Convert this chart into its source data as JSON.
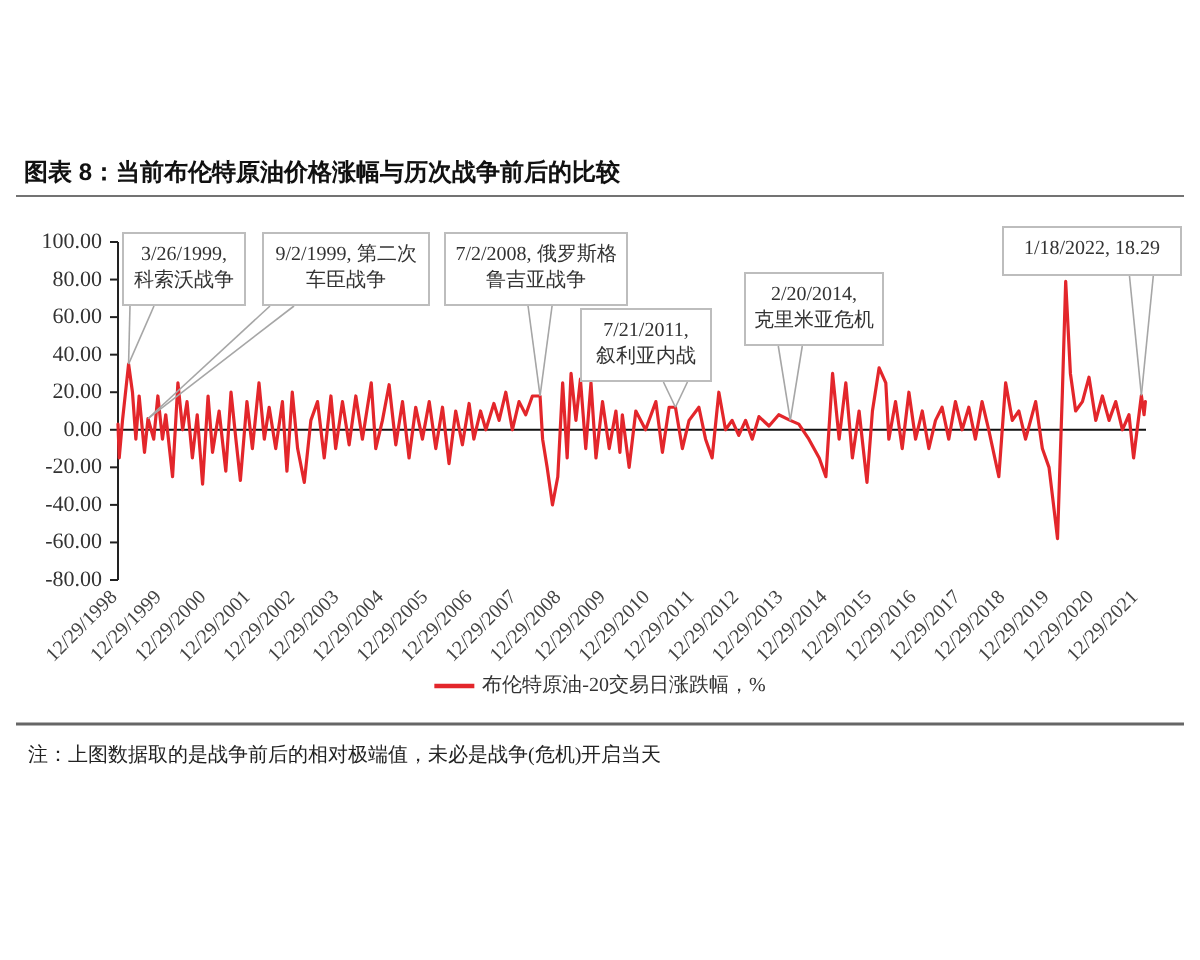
{
  "chart_data": {
    "type": "line",
    "title": "图表 8：当前布伦特原油价格涨幅与历次战争前后的比较",
    "x": [
      "1998-12-29",
      "1999-01-08",
      "1999-02-04",
      "1999-03-26",
      "1999-04-27",
      "1999-05-25",
      "1999-06-21",
      "1999-08-04",
      "1999-09-02",
      "1999-10-19",
      "1999-11-22",
      "1999-12-30",
      "2000-01-26",
      "2000-03-22",
      "2000-05-05",
      "2000-06-13",
      "2000-07-19",
      "2000-09-01",
      "2000-10-11",
      "2000-11-24",
      "2001-01-08",
      "2001-02-14",
      "2001-04-09",
      "2001-06-03",
      "2001-07-16",
      "2001-08-25",
      "2001-10-01",
      "2001-11-24",
      "2002-01-08",
      "2002-03-03",
      "2002-04-16",
      "2002-05-26",
      "2002-07-19",
      "2002-09-12",
      "2002-10-19",
      "2002-12-02",
      "2003-01-15",
      "2003-03-11",
      "2003-05-04",
      "2003-06-28",
      "2003-08-22",
      "2003-10-16",
      "2003-11-24",
      "2004-01-19",
      "2004-03-14",
      "2004-05-08",
      "2004-07-01",
      "2004-09-12",
      "2004-10-19",
      "2004-12-13",
      "2005-02-06",
      "2005-04-02",
      "2005-05-27",
      "2005-07-20",
      "2005-09-13",
      "2005-11-07",
      "2006-01-02",
      "2006-02-25",
      "2006-04-21",
      "2006-06-14",
      "2006-08-08",
      "2006-10-02",
      "2006-11-26",
      "2007-01-04",
      "2007-02-28",
      "2007-04-13",
      "2007-06-18",
      "2007-07-31",
      "2007-09-24",
      "2007-11-17",
      "2008-01-11",
      "2008-03-06",
      "2008-04-30",
      "2008-07-02",
      "2008-07-23",
      "2008-08-29",
      "2008-10-12",
      "2008-11-25",
      "2009-01-04",
      "2009-02-10",
      "2009-03-14",
      "2009-04-23",
      "2009-05-30",
      "2009-07-13",
      "2009-08-25",
      "2009-10-05",
      "2009-11-28",
      "2010-01-22",
      "2010-03-18",
      "2010-04-20",
      "2010-05-10",
      "2010-07-05",
      "2010-08-29",
      "2010-11-17",
      "2011-02-10",
      "2011-04-05",
      "2011-05-30",
      "2011-07-21",
      "2011-09-16",
      "2011-11-10",
      "2012-01-30",
      "2012-03-25",
      "2012-05-18",
      "2012-07-12",
      "2012-09-05",
      "2012-10-29",
      "2012-12-23",
      "2013-02-17",
      "2013-04-13",
      "2013-06-07",
      "2013-08-29",
      "2013-11-17",
      "2014-02-20",
      "2014-05-01",
      "2014-07-23",
      "2014-10-16",
      "2014-12-10",
      "2015-02-03",
      "2015-03-29",
      "2015-05-23",
      "2015-07-16",
      "2015-09-09",
      "2015-11-13",
      "2015-12-28",
      "2016-02-21",
      "2016-04-16",
      "2016-05-11",
      "2016-07-05",
      "2016-08-29",
      "2016-10-23",
      "2016-12-17",
      "2017-02-10",
      "2017-04-05",
      "2017-05-30",
      "2017-07-23",
      "2017-09-16",
      "2017-11-10",
      "2018-01-04",
      "2018-02-28",
      "2018-04-23",
      "2018-06-17",
      "2018-08-11",
      "2018-11-02",
      "2018-12-28",
      "2019-02-21",
      "2019-04-16",
      "2019-06-10",
      "2019-09-01",
      "2019-10-26",
      "2019-12-20",
      "2020-01-26",
      "2020-02-28",
      "2020-04-08",
      "2020-05-05",
      "2020-06-13",
      "2020-07-26",
      "2020-09-20",
      "2020-11-13",
      "2021-01-08",
      "2021-03-03",
      "2021-04-27",
      "2021-06-21",
      "2021-08-15",
      "2021-10-08",
      "2021-11-15",
      "2022-01-18",
      "2022-02-09",
      "2022-02-20"
    ],
    "series": [
      {
        "name": "布伦特原油-20交易日涨跌幅，%",
        "color": "#e3262b",
        "values": [
          3,
          -15,
          5,
          35,
          20,
          -5,
          18,
          -12,
          6,
          -5,
          18,
          -5,
          8,
          -25,
          25,
          0,
          15,
          -15,
          8,
          -29,
          18,
          -12,
          10,
          -22,
          20,
          -5,
          -27,
          15,
          -10,
          25,
          -5,
          12,
          -10,
          15,
          -22,
          20,
          -10,
          -28,
          5,
          15,
          -15,
          18,
          -10,
          15,
          -8,
          18,
          -5,
          25,
          -10,
          5,
          24,
          -8,
          15,
          -15,
          12,
          -5,
          15,
          -10,
          12,
          -18,
          10,
          -8,
          14,
          -5,
          10,
          0,
          14,
          5,
          20,
          0,
          15,
          8,
          18,
          18,
          -5,
          -20,
          -40,
          -25,
          25,
          -15,
          30,
          5,
          27,
          -10,
          25,
          -15,
          15,
          -10,
          10,
          -12,
          8,
          -20,
          10,
          0,
          15,
          -12,
          12,
          12,
          -10,
          5,
          12,
          -5,
          -15,
          20,
          0,
          5,
          -3,
          5,
          -5,
          7,
          2,
          8,
          5,
          3,
          -5,
          -15,
          -25,
          30,
          -5,
          25,
          -15,
          10,
          -28,
          10,
          33,
          25,
          -5,
          15,
          -10,
          20,
          -5,
          10,
          -10,
          5,
          12,
          -5,
          15,
          0,
          12,
          -5,
          15,
          0,
          -25,
          25,
          5,
          10,
          -5,
          15,
          -10,
          -20,
          -40,
          -58,
          20,
          79,
          30,
          10,
          15,
          28,
          5,
          18,
          5,
          15,
          0,
          8,
          -15,
          18.29,
          8,
          15
        ]
      }
    ],
    "xlim": [
      "1998-12-29",
      "2022-02-25"
    ],
    "xticks": [
      {
        "value": "1998-12-29",
        "label": "12/29/1998"
      },
      {
        "value": "1999-12-29",
        "label": "12/29/1999"
      },
      {
        "value": "2000-12-29",
        "label": "12/29/2000"
      },
      {
        "value": "2001-12-29",
        "label": "12/29/2001"
      },
      {
        "value": "2002-12-29",
        "label": "12/29/2002"
      },
      {
        "value": "2003-12-29",
        "label": "12/29/2003"
      },
      {
        "value": "2004-12-29",
        "label": "12/29/2004"
      },
      {
        "value": "2005-12-29",
        "label": "12/29/2005"
      },
      {
        "value": "2006-12-29",
        "label": "12/29/2006"
      },
      {
        "value": "2007-12-29",
        "label": "12/29/2007"
      },
      {
        "value": "2008-12-29",
        "label": "12/29/2008"
      },
      {
        "value": "2009-12-29",
        "label": "12/29/2009"
      },
      {
        "value": "2010-12-29",
        "label": "12/29/2010"
      },
      {
        "value": "2011-12-29",
        "label": "12/29/2011"
      },
      {
        "value": "2012-12-29",
        "label": "12/29/2012"
      },
      {
        "value": "2013-12-29",
        "label": "12/29/2013"
      },
      {
        "value": "2014-12-29",
        "label": "12/29/2014"
      },
      {
        "value": "2015-12-29",
        "label": "12/29/2015"
      },
      {
        "value": "2016-12-29",
        "label": "12/29/2016"
      },
      {
        "value": "2017-12-29",
        "label": "12/29/2017"
      },
      {
        "value": "2018-12-29",
        "label": "12/29/2018"
      },
      {
        "value": "2019-12-29",
        "label": "12/29/2019"
      },
      {
        "value": "2020-12-29",
        "label": "12/29/2020"
      },
      {
        "value": "2021-12-29",
        "label": "12/29/2021"
      }
    ],
    "ylim": [
      -80,
      100
    ],
    "yticks": [
      {
        "value": -80,
        "label": "-80.00"
      },
      {
        "value": -60,
        "label": "-60.00"
      },
      {
        "value": -40,
        "label": "-40.00"
      },
      {
        "value": -20,
        "label": "-20.00"
      },
      {
        "value": 0,
        "label": "0.00"
      },
      {
        "value": 20,
        "label": "20.00"
      },
      {
        "value": 40,
        "label": "40.00"
      },
      {
        "value": 60,
        "label": "60.00"
      },
      {
        "value": 80,
        "label": "80.00"
      },
      {
        "value": 100,
        "label": "100.00"
      }
    ],
    "legend": "bottom",
    "line_style": "solid",
    "annotations": [
      {
        "text": "3/26/1999, 科索沃战争",
        "x": "1999-03-26",
        "y": 35
      },
      {
        "text": "9/2/1999, 第二次车臣战争",
        "x": "1999-09-02",
        "y": 6
      },
      {
        "text": "7/2/2008, 俄罗斯格鲁吉亚战争",
        "x": "2008-07-02",
        "y": 18
      },
      {
        "text": "7/21/2011, 叙利亚内战",
        "x": "2011-07-21",
        "y": 12
      },
      {
        "text": "2/20/2014, 克里米亚危机",
        "x": "2014-02-20",
        "y": 5
      },
      {
        "text": "1/18/2022, 18.29",
        "x": "2022-01-18",
        "y": 18.29
      },
      "注：上图数据取的是战争前后的相对极端值，未必是战争(危机)开启当天"
    ]
  }
}
